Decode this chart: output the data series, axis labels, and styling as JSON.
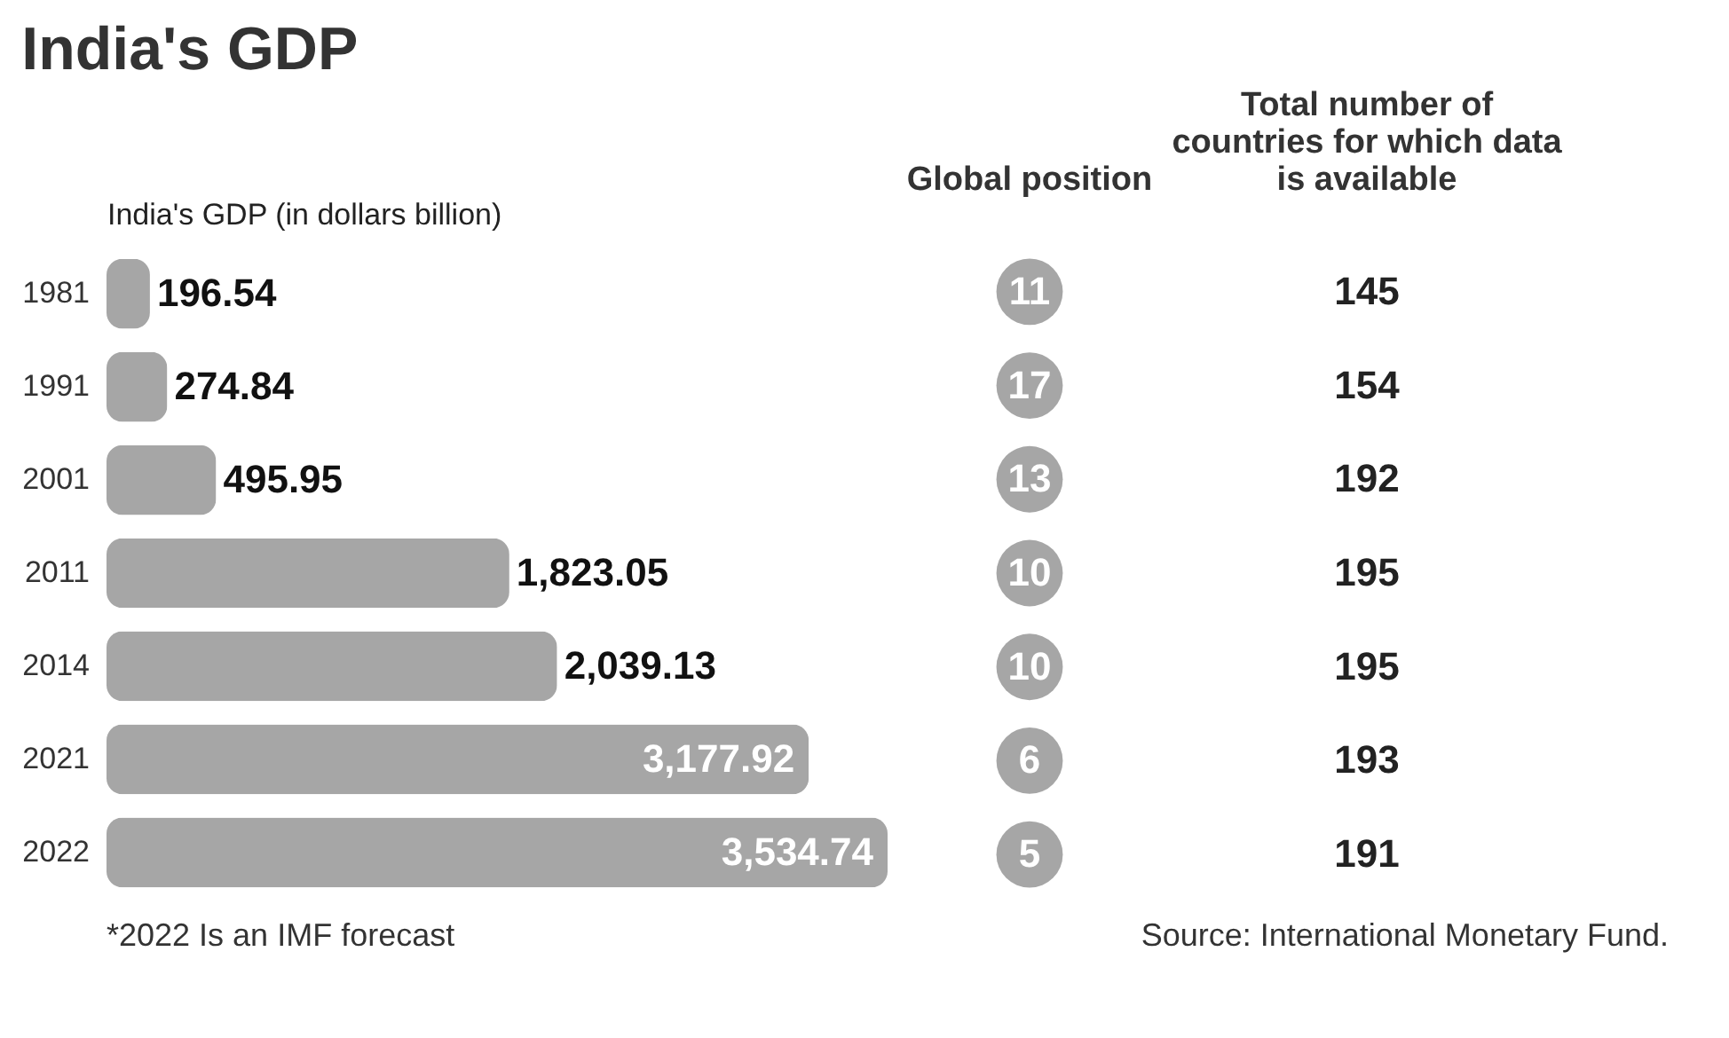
{
  "chart_data": [
    {
      "type": "bar",
      "orientation": "horizontal",
      "title": "India's GDP",
      "xlabel": "India's GDP (in dollars billion)",
      "categories": [
        "1981",
        "1991",
        "2001",
        "2011",
        "2014",
        "2021",
        "2022"
      ],
      "values": [
        196.54,
        274.84,
        495.95,
        1823.05,
        2039.13,
        3177.92,
        3534.74
      ],
      "color": "#a6a6a6",
      "value_labels": [
        "196.54",
        "274.84",
        "495.95",
        "1,823.05",
        "2,039.13",
        "3,177.92",
        "3,534.74"
      ],
      "tick_labels": "y",
      "annotations": [
        "*2022 Is an IMF forecast",
        "Source: International Monetary Fund."
      ]
    },
    {
      "type": "other",
      "title": "Global position",
      "categories": [
        null,
        null,
        null,
        null,
        null,
        null,
        null
      ],
      "values": [
        11,
        17,
        13,
        10,
        10,
        6,
        5
      ],
      "data_labels": true,
      "color": "#a6a6a6"
    },
    {
      "type": "other",
      "title": "Total number of countries for which data is available",
      "categories": [
        null,
        null,
        null,
        null,
        null,
        null,
        null
      ],
      "values": [
        145,
        154,
        192,
        195,
        195,
        193,
        191
      ],
      "data_labels": true
    }
  ]
}
